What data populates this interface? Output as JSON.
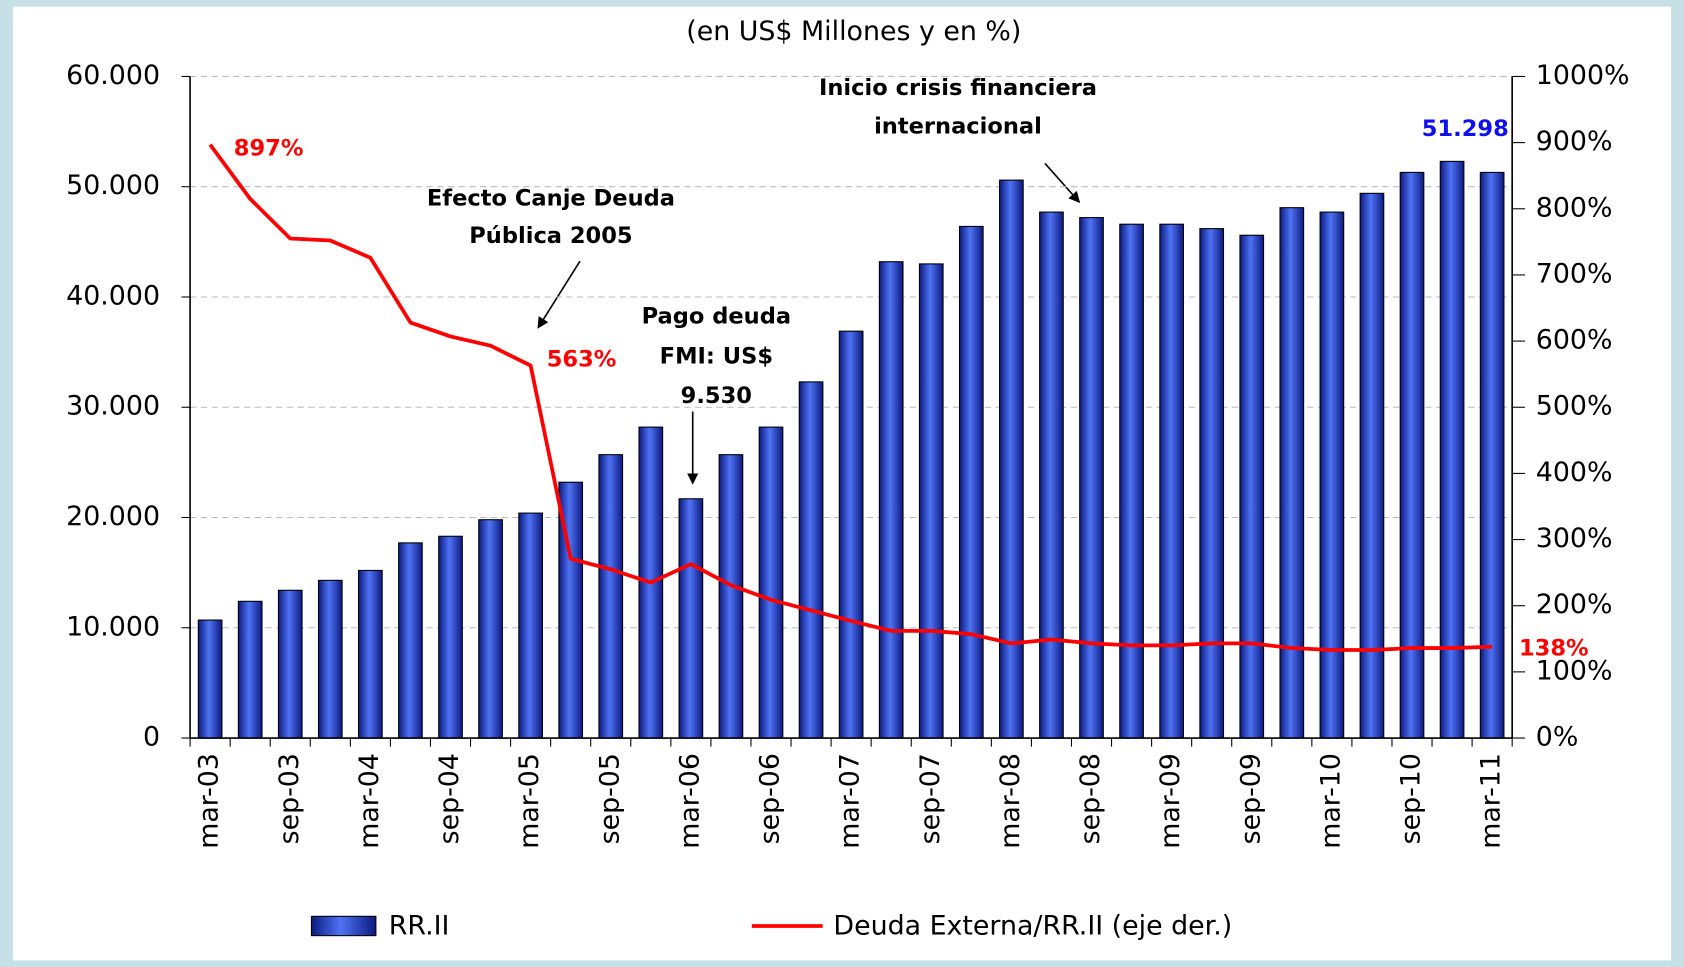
{
  "chart_data": {
    "type": "bar",
    "subtitle": "(en US$ Millones y en %)",
    "categories": [
      "mar-03",
      null,
      "sep-03",
      null,
      "mar-04",
      null,
      "sep-04",
      null,
      "mar-05",
      null,
      "sep-05",
      null,
      "mar-06",
      null,
      "sep-06",
      null,
      "mar-07",
      null,
      "sep-07",
      null,
      "mar-08",
      null,
      "sep-08",
      null,
      "mar-09",
      null,
      "sep-09",
      null,
      "mar-10",
      null,
      "sep-10",
      null,
      "mar-11"
    ],
    "series": [
      {
        "name": "RR.II",
        "type": "bar",
        "color": "#2a44d8",
        "values": [
          10700,
          12400,
          13400,
          14300,
          15200,
          17700,
          18300,
          19800,
          20400,
          23200,
          25700,
          28200,
          21700,
          25700,
          28200,
          32300,
          36900,
          43200,
          43000,
          46400,
          50600,
          47700,
          47200,
          46600,
          46600,
          46200,
          45600,
          48100,
          47700,
          49400,
          51300,
          52300,
          51298
        ],
        "value_labels": [
          null,
          null,
          null,
          null,
          null,
          null,
          null,
          null,
          null,
          null,
          null,
          null,
          null,
          null,
          null,
          null,
          null,
          null,
          null,
          null,
          null,
          null,
          null,
          null,
          null,
          null,
          null,
          null,
          null,
          null,
          null,
          null,
          "51.298"
        ]
      },
      {
        "name": "Deuda Externa/RR.II (eje der.)",
        "type": "line",
        "axis": "y2",
        "color": "#ff0000",
        "values": [
          897,
          815,
          755,
          752,
          726,
          628,
          607,
          593,
          563,
          271,
          255,
          235,
          263,
          231,
          209,
          193,
          177,
          162,
          162,
          157,
          143,
          149,
          143,
          140,
          140,
          143,
          143,
          136,
          133,
          133,
          136,
          136,
          138
        ],
        "value_labels": [
          "897%",
          null,
          null,
          null,
          null,
          null,
          null,
          null,
          "563%",
          null,
          null,
          null,
          null,
          null,
          null,
          null,
          null,
          null,
          null,
          null,
          null,
          null,
          null,
          null,
          null,
          null,
          null,
          null,
          null,
          null,
          null,
          null,
          "138%"
        ]
      }
    ],
    "ylim": [
      0,
      60000
    ],
    "yticks": [
      0,
      {
        "value": 10000,
        "label": "10.000"
      },
      {
        "value": 20000,
        "label": "20.000"
      },
      {
        "value": 30000,
        "label": "30.000"
      },
      {
        "value": 40000,
        "label": "40.000"
      },
      {
        "value": 50000,
        "label": "50.000"
      },
      {
        "value": 60000,
        "label": "60.000"
      }
    ],
    "y2lim": [
      0,
      1000
    ],
    "y2ticks": [
      {
        "value": 0,
        "label": "0%"
      },
      {
        "value": 100,
        "label": "100%"
      },
      {
        "value": 200,
        "label": "200%"
      },
      {
        "value": 300,
        "label": "300%"
      },
      {
        "value": 400,
        "label": "400%"
      },
      {
        "value": 500,
        "label": "500%"
      },
      {
        "value": 600,
        "label": "600%"
      },
      {
        "value": 700,
        "label": "700%"
      },
      {
        "value": 800,
        "label": "800%"
      },
      {
        "value": 900,
        "label": "900%"
      },
      {
        "value": 1000,
        "label": "1000%"
      }
    ],
    "grid": true,
    "annotations": [
      {
        "lines": [
          "Efecto Canje Deuda",
          "Pública 2005"
        ]
      },
      {
        "lines": [
          "Pago deuda",
          "FMI: US$",
          "9.530"
        ]
      },
      {
        "lines": [
          "Inicio crisis financiera",
          "internacional"
        ]
      }
    ]
  }
}
